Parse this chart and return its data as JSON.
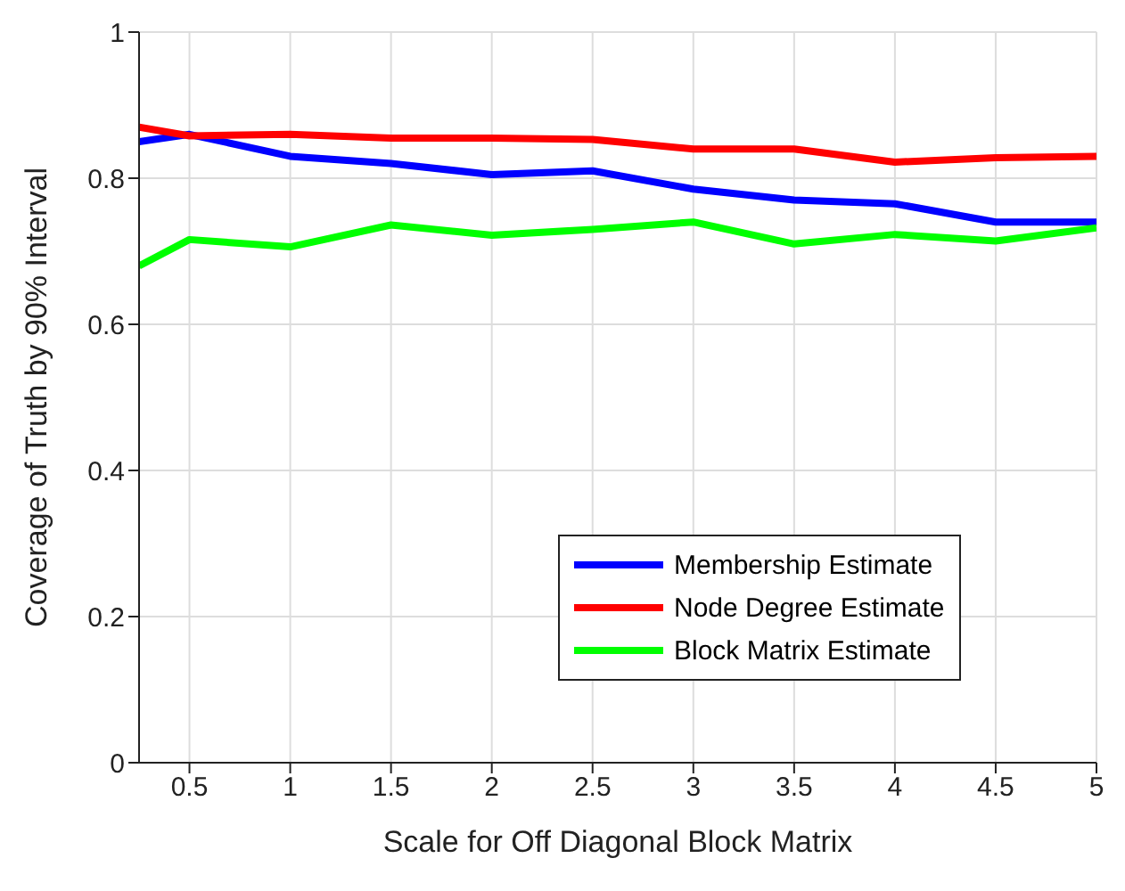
{
  "chart_data": {
    "type": "line",
    "xlabel": "Scale for Off Diagonal Block Matrix",
    "ylabel": "Coverage of Truth by 90% Interval",
    "x": [
      0.25,
      0.5,
      1,
      1.5,
      2,
      2.5,
      3,
      3.5,
      4,
      4.5,
      5
    ],
    "series": [
      {
        "name": "Membership Estimate",
        "color": "#0000ff",
        "values": [
          0.85,
          0.86,
          0.83,
          0.82,
          0.805,
          0.81,
          0.785,
          0.77,
          0.765,
          0.74,
          0.74
        ]
      },
      {
        "name": "Node Degree Estimate",
        "color": "#ff0000",
        "values": [
          0.87,
          0.858,
          0.86,
          0.855,
          0.855,
          0.853,
          0.84,
          0.84,
          0.822,
          0.828,
          0.83
        ]
      },
      {
        "name": "Block Matrix Estimate",
        "color": "#00ff00",
        "values": [
          0.68,
          0.716,
          0.706,
          0.736,
          0.722,
          0.73,
          0.74,
          0.71,
          0.723,
          0.714,
          0.732
        ]
      }
    ],
    "xlim": [
      0.25,
      5
    ],
    "xticks": [
      0.5,
      1,
      1.5,
      2,
      2.5,
      3,
      3.5,
      4,
      4.5,
      5
    ],
    "ylim": [
      0,
      1
    ],
    "yticks": [
      0,
      0.2,
      0.4,
      0.6,
      0.8,
      1
    ],
    "grid": true,
    "legend": "bottom right",
    "marker": "none",
    "line_style": "solid"
  }
}
